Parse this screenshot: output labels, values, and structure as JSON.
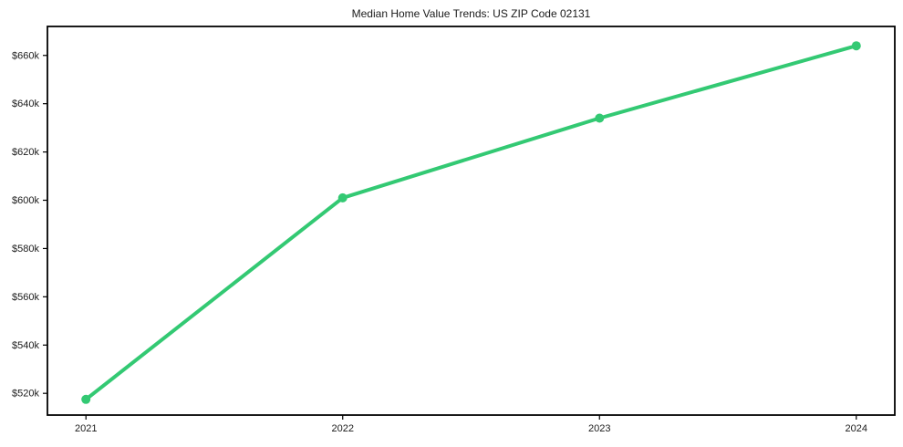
{
  "figure": {
    "background": "#ffffff"
  },
  "chart_data": {
    "type": "line",
    "title": "Median Home Value Trends: US ZIP Code 02131",
    "x": [
      2021,
      2022,
      2023,
      2024
    ],
    "xtick_labels": [
      "2021",
      "2022",
      "2023",
      "2024"
    ],
    "values": [
      517500,
      601000,
      634000,
      664000
    ],
    "yticks": [
      520000,
      540000,
      560000,
      580000,
      600000,
      620000,
      640000,
      660000
    ],
    "ytick_labels": [
      "$520k",
      "$540k",
      "$560k",
      "$580k",
      "$600k",
      "$620k",
      "$640k",
      "$660k"
    ],
    "xlim": [
      2020.85,
      2024.15
    ],
    "ylim": [
      511000,
      672000
    ],
    "grid": false,
    "legend": false,
    "line_color": "#33c973",
    "marker": "circle",
    "axis_color": "#000000",
    "text_color": "#1a1a1a"
  }
}
